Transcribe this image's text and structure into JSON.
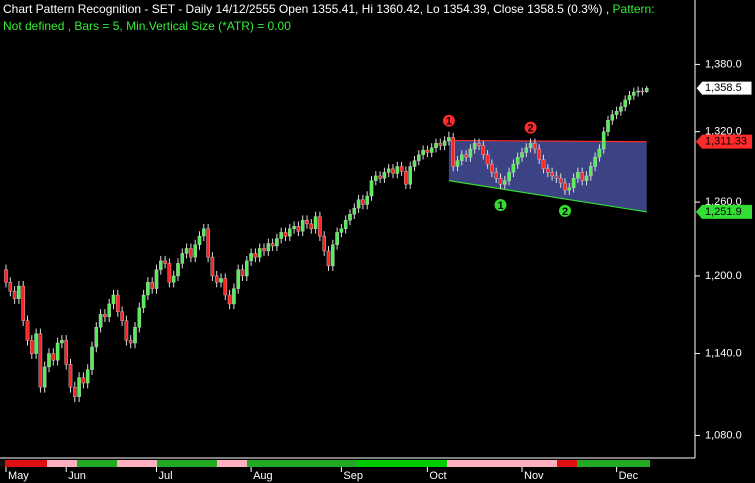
{
  "chart_data": {
    "type": "candlestick",
    "title": "Chart Pattern Recognition",
    "subtitle": "- SET - Daily 14/12/2555 Open 1355.41, Hi 1360.42, Lo 1354.39, Close 1358.5 (0.3%) ,",
    "pattern_label": "Pattern:",
    "pattern_info": "Not defined , Bars = 5, Min.Vertical Size (*ATR) = 0.00",
    "log_scale": true,
    "ylim": [
      1064,
      1440
    ],
    "yticks": [
      {
        "value": 1080,
        "label": "1,080.0"
      },
      {
        "value": 1140,
        "label": "1,140.0"
      },
      {
        "value": 1200,
        "label": "1,200.0"
      },
      {
        "value": 1260,
        "label": "1,260.0"
      },
      {
        "value": 1320,
        "label": "1,320.0"
      },
      {
        "value": 1380,
        "label": "1,380.0"
      }
    ],
    "up_color": "#55ee55",
    "down_color": "#ff2222",
    "categories": [
      "May",
      null,
      null,
      null,
      null,
      null,
      null,
      null,
      null,
      null,
      null,
      null,
      null,
      null,
      "Jun",
      null,
      null,
      null,
      null,
      null,
      null,
      null,
      null,
      null,
      null,
      null,
      null,
      null,
      null,
      null,
      null,
      null,
      null,
      null,
      null,
      "Jul",
      null,
      null,
      null,
      null,
      null,
      null,
      null,
      null,
      null,
      null,
      null,
      null,
      null,
      null,
      null,
      null,
      null,
      null,
      null,
      null,
      null,
      "Aug",
      null,
      null,
      null,
      null,
      null,
      null,
      null,
      null,
      null,
      null,
      null,
      null,
      null,
      null,
      null,
      null,
      null,
      null,
      null,
      null,
      "Sep",
      null,
      null,
      null,
      null,
      null,
      null,
      null,
      null,
      null,
      null,
      null,
      null,
      null,
      null,
      null,
      null,
      null,
      null,
      null,
      "Oct",
      null,
      null,
      null,
      null,
      null,
      null,
      null,
      null,
      null,
      null,
      null,
      null,
      null,
      null,
      null,
      null,
      null,
      null,
      null,
      null,
      null,
      "Nov",
      null,
      null,
      null,
      null,
      null,
      null,
      null,
      null,
      null,
      null,
      null,
      null,
      null,
      null,
      null,
      null,
      null,
      null,
      null,
      null,
      null,
      "Dec",
      null,
      null,
      null,
      null,
      null,
      null,
      null
    ],
    "open": [
      1205,
      1195,
      1188,
      1182,
      1192,
      1165,
      1150,
      1140,
      1155,
      1115,
      1130,
      1140,
      1135,
      1148,
      1150,
      1132,
      1115,
      1108,
      1122,
      1118,
      1128,
      1145,
      1160,
      1170,
      1168,
      1178,
      1185,
      1172,
      1165,
      1150,
      1148,
      1160,
      1175,
      1185,
      1195,
      1190,
      1205,
      1212,
      1210,
      1195,
      1200,
      1210,
      1218,
      1222,
      1215,
      1225,
      1232,
      1238,
      1215,
      1200,
      1195,
      1198,
      1185,
      1178,
      1190,
      1205,
      1200,
      1212,
      1218,
      1215,
      1222,
      1220,
      1226,
      1224,
      1230,
      1235,
      1232,
      1238,
      1240,
      1236,
      1245,
      1242,
      1238,
      1248,
      1232,
      1220,
      1208,
      1225,
      1235,
      1238,
      1245,
      1250,
      1255,
      1262,
      1258,
      1265,
      1278,
      1282,
      1280,
      1285,
      1288,
      1284,
      1290,
      1286,
      1275,
      1290,
      1295,
      1300,
      1304,
      1302,
      1306,
      1310,
      1308,
      1312,
      1315,
      1290,
      1295,
      1300,
      1298,
      1305,
      1310,
      1308,
      1300,
      1292,
      1285,
      1280,
      1275,
      1278,
      1285,
      1292,
      1298,
      1302,
      1306,
      1310,
      1305,
      1296,
      1288,
      1285,
      1282,
      1280,
      1276,
      1270,
      1272,
      1280,
      1285,
      1278,
      1282,
      1290,
      1298,
      1305,
      1320,
      1330,
      1335,
      1338,
      1342,
      1348,
      1352,
      1355,
      1356,
      1355.41
    ],
    "high": [
      1209,
      1199,
      1192,
      1196,
      1196,
      1169,
      1154,
      1159,
      1159,
      1134,
      1144,
      1144,
      1152,
      1154,
      1154,
      1136,
      1119,
      1126,
      1126,
      1132,
      1149,
      1164,
      1174,
      1174,
      1182,
      1189,
      1189,
      1176,
      1169,
      1154,
      1164,
      1179,
      1189,
      1199,
      1199,
      1209,
      1216,
      1216,
      1214,
      1204,
      1214,
      1222,
      1226,
      1226,
      1229,
      1236,
      1242,
      1242,
      1219,
      1204,
      1202,
      1202,
      1189,
      1194,
      1209,
      1209,
      1216,
      1222,
      1222,
      1226,
      1226,
      1230,
      1230,
      1234,
      1239,
      1239,
      1242,
      1244,
      1244,
      1249,
      1249,
      1246,
      1252,
      1252,
      1236,
      1224,
      1229,
      1239,
      1242,
      1249,
      1254,
      1259,
      1266,
      1266,
      1269,
      1282,
      1286,
      1286,
      1289,
      1292,
      1292,
      1294,
      1294,
      1290,
      1294,
      1299,
      1304,
      1308,
      1308,
      1310,
      1314,
      1314,
      1316,
      1320,
      1319,
      1299,
      1304,
      1304,
      1309,
      1314,
      1314,
      1312,
      1304,
      1296,
      1289,
      1284,
      1282,
      1289,
      1296,
      1302,
      1306,
      1310,
      1314,
      1314,
      1309,
      1300,
      1292,
      1289,
      1286,
      1284,
      1280,
      1276,
      1284,
      1289,
      1289,
      1286,
      1294,
      1302,
      1309,
      1324,
      1334,
      1339,
      1342,
      1346,
      1352,
      1356,
      1359,
      1360,
      1359,
      1360.42
    ],
    "low": [
      1191,
      1184,
      1178,
      1178,
      1161,
      1146,
      1136,
      1136,
      1111,
      1111,
      1126,
      1131,
      1131,
      1144,
      1128,
      1111,
      1104,
      1104,
      1114,
      1114,
      1124,
      1141,
      1156,
      1164,
      1164,
      1174,
      1168,
      1161,
      1146,
      1144,
      1144,
      1156,
      1171,
      1181,
      1186,
      1186,
      1201,
      1206,
      1191,
      1191,
      1196,
      1206,
      1214,
      1211,
      1211,
      1221,
      1228,
      1211,
      1196,
      1191,
      1191,
      1181,
      1174,
      1174,
      1186,
      1196,
      1196,
      1208,
      1211,
      1211,
      1216,
      1216,
      1220,
      1220,
      1226,
      1228,
      1228,
      1234,
      1232,
      1232,
      1238,
      1234,
      1234,
      1228,
      1216,
      1204,
      1204,
      1221,
      1231,
      1234,
      1241,
      1246,
      1251,
      1254,
      1254,
      1261,
      1274,
      1276,
      1276,
      1281,
      1280,
      1280,
      1282,
      1271,
      1271,
      1286,
      1291,
      1296,
      1298,
      1298,
      1302,
      1304,
      1304,
      1308,
      1286,
      1286,
      1291,
      1294,
      1294,
      1301,
      1304,
      1296,
      1288,
      1281,
      1276,
      1271,
      1271,
      1274,
      1281,
      1288,
      1294,
      1298,
      1302,
      1301,
      1292,
      1284,
      1281,
      1278,
      1276,
      1272,
      1266,
      1266,
      1268,
      1276,
      1274,
      1274,
      1278,
      1286,
      1294,
      1301,
      1316,
      1326,
      1331,
      1334,
      1338,
      1344,
      1348,
      1351,
      1352,
      1354.39
    ],
    "close": [
      1195,
      1188,
      1182,
      1192,
      1165,
      1150,
      1140,
      1155,
      1115,
      1130,
      1140,
      1135,
      1148,
      1150,
      1132,
      1115,
      1108,
      1122,
      1118,
      1128,
      1145,
      1160,
      1170,
      1168,
      1178,
      1185,
      1172,
      1165,
      1150,
      1148,
      1160,
      1175,
      1185,
      1195,
      1190,
      1205,
      1212,
      1210,
      1195,
      1200,
      1210,
      1218,
      1222,
      1215,
      1225,
      1232,
      1238,
      1215,
      1200,
      1195,
      1198,
      1185,
      1178,
      1190,
      1205,
      1200,
      1212,
      1218,
      1215,
      1222,
      1220,
      1226,
      1224,
      1230,
      1235,
      1232,
      1238,
      1240,
      1236,
      1245,
      1242,
      1238,
      1248,
      1232,
      1220,
      1208,
      1225,
      1235,
      1238,
      1245,
      1250,
      1255,
      1262,
      1258,
      1265,
      1278,
      1282,
      1280,
      1285,
      1288,
      1284,
      1290,
      1286,
      1275,
      1290,
      1295,
      1300,
      1304,
      1302,
      1306,
      1310,
      1308,
      1312,
      1315,
      1290,
      1295,
      1300,
      1298,
      1305,
      1310,
      1308,
      1300,
      1292,
      1285,
      1280,
      1275,
      1278,
      1285,
      1292,
      1298,
      1302,
      1306,
      1310,
      1305,
      1296,
      1288,
      1285,
      1282,
      1280,
      1276,
      1270,
      1272,
      1280,
      1285,
      1278,
      1282,
      1290,
      1298,
      1305,
      1320,
      1330,
      1335,
      1338,
      1342,
      1348,
      1352,
      1355,
      1356,
      1355.2,
      1358.5
    ],
    "last_price": {
      "value": 1358.5,
      "label": "1,358.5"
    },
    "pattern": {
      "fill": "#3c4384",
      "upper": {
        "color": "#ff2a2a",
        "start": 1312.4,
        "end": {
          "value": 1311.33,
          "label": "1,311.33"
        }
      },
      "lower": {
        "color": "#33dd33",
        "start": 1278,
        "end": {
          "value": 1251.9,
          "label": "1,251.9"
        }
      },
      "peak_labels": [
        "1",
        "2"
      ],
      "trough_labels": [
        "1",
        "2"
      ]
    }
  }
}
